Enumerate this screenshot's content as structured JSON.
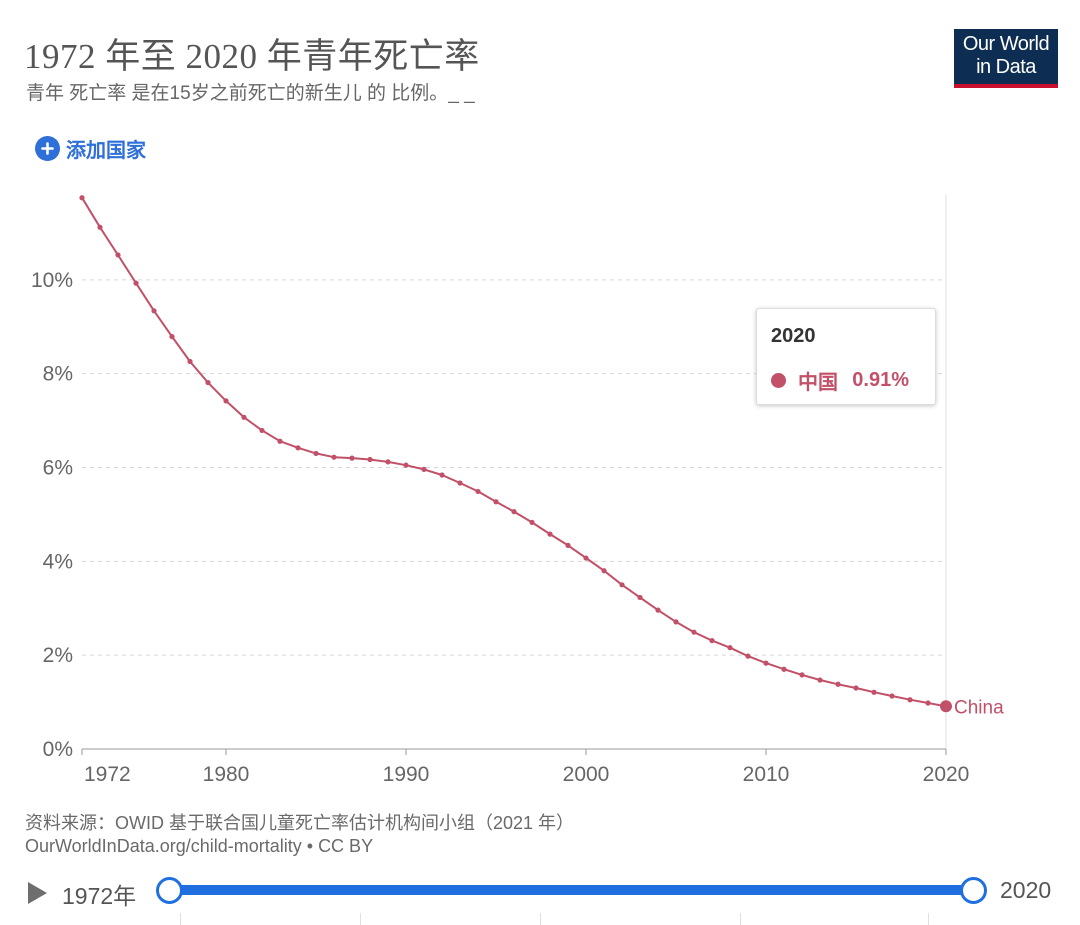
{
  "header": {
    "title": "1972 年至 2020 年青年死亡率",
    "subtitle": "青年 死亡率 是在15岁之前死亡的新生儿 的 比例。_ _",
    "logo_line1": "Our World",
    "logo_line2": "in Data"
  },
  "controls": {
    "add_country_label": "添加国家",
    "add_icon": "plus-circle-icon"
  },
  "tooltip": {
    "year": "2020",
    "country": "中国",
    "value": "0.91%"
  },
  "footer": {
    "source_line1": "资料来源：OWID 基于联合国儿童死亡率估计机构间小组（2021 年）",
    "source_line2": "OurWorldInData.org/child-mortality • CC BY"
  },
  "timeline": {
    "start_label": "1972年",
    "end_label": "2020",
    "start_year": 1972,
    "end_year": 2020,
    "play_icon": "play-icon"
  },
  "colors": {
    "series": "#c25068",
    "accent": "#1f6fe0",
    "logo_bg": "#0d2d52",
    "logo_bar": "#c8102e"
  },
  "chart_data": {
    "type": "line",
    "title": "1972 年至 2020 年青年死亡率",
    "xlabel": "",
    "ylabel": "",
    "xlim": [
      1972,
      2020
    ],
    "ylim": [
      0,
      12
    ],
    "x_ticks": [
      {
        "v": 1972,
        "label": "1972"
      },
      {
        "v": 1980,
        "label": "1980"
      },
      {
        "v": 1990,
        "label": "1990"
      },
      {
        "v": 2000,
        "label": "2000"
      },
      {
        "v": 2010,
        "label": "2010"
      },
      {
        "v": 2020,
        "label": "2020"
      }
    ],
    "y_ticks": [
      {
        "v": 0,
        "label": "0%"
      },
      {
        "v": 2,
        "label": "2%"
      },
      {
        "v": 4,
        "label": "4%"
      },
      {
        "v": 6,
        "label": "6%"
      },
      {
        "v": 8,
        "label": "8%"
      },
      {
        "v": 10,
        "label": "10%"
      }
    ],
    "grid": "horizontal dashed",
    "series": [
      {
        "name": "China",
        "color": "#c25068",
        "end_label": "China",
        "x": [
          1972,
          1973,
          1974,
          1975,
          1976,
          1977,
          1978,
          1979,
          1980,
          1981,
          1982,
          1983,
          1984,
          1985,
          1986,
          1987,
          1988,
          1989,
          1990,
          1991,
          1992,
          1993,
          1994,
          1995,
          1996,
          1997,
          1998,
          1999,
          2000,
          2001,
          2002,
          2003,
          2004,
          2005,
          2006,
          2007,
          2008,
          2009,
          2010,
          2011,
          2012,
          2013,
          2014,
          2015,
          2016,
          2017,
          2018,
          2019,
          2020
        ],
        "y": [
          11.75,
          11.12,
          10.53,
          9.93,
          9.34,
          8.79,
          8.26,
          7.81,
          7.42,
          7.07,
          6.79,
          6.56,
          6.42,
          6.3,
          6.22,
          6.2,
          6.17,
          6.12,
          6.05,
          5.96,
          5.84,
          5.67,
          5.49,
          5.27,
          5.06,
          4.83,
          4.58,
          4.34,
          4.07,
          3.8,
          3.5,
          3.23,
          2.96,
          2.71,
          2.49,
          2.31,
          2.16,
          1.98,
          1.83,
          1.7,
          1.58,
          1.47,
          1.38,
          1.3,
          1.21,
          1.13,
          1.05,
          0.98,
          0.91
        ]
      }
    ]
  }
}
